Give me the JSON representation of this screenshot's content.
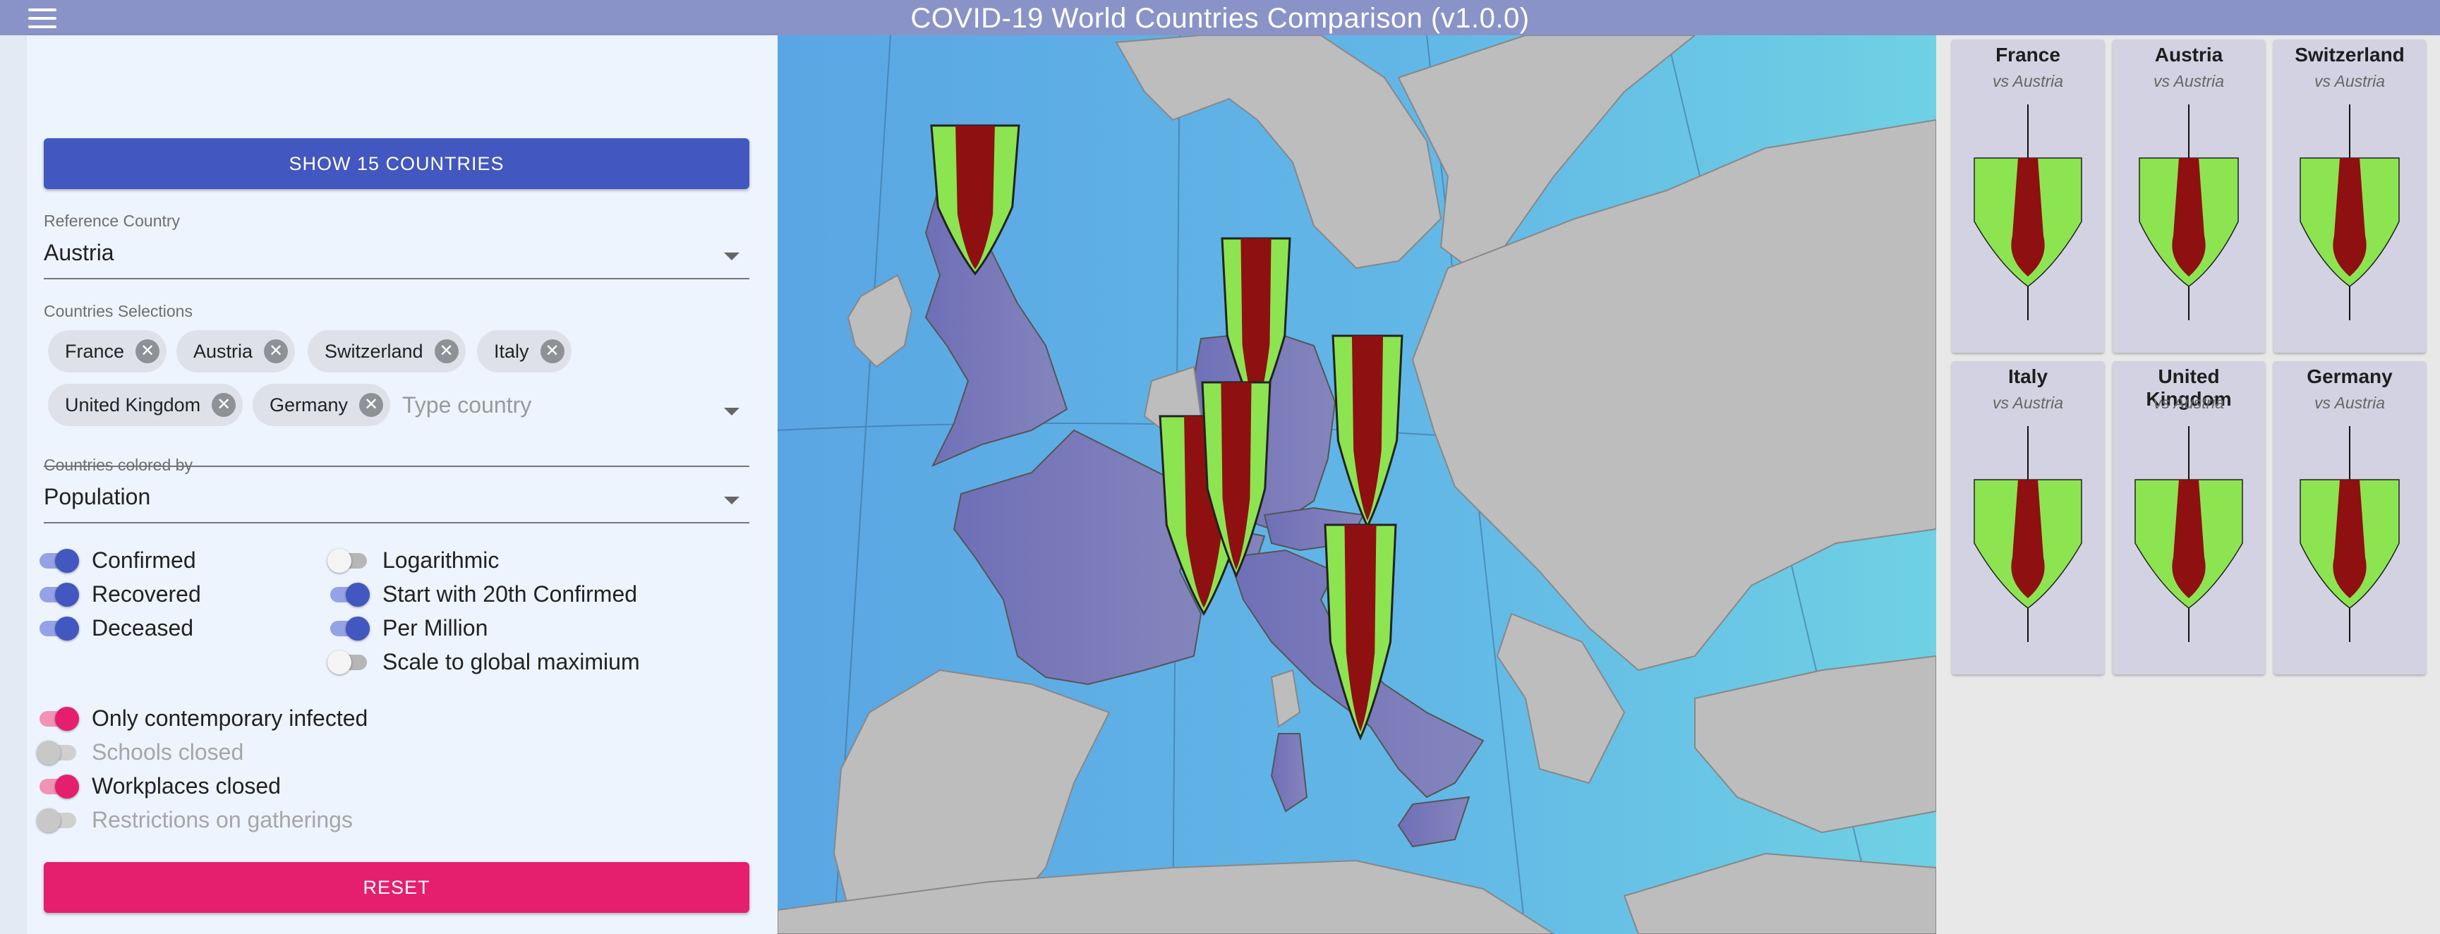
{
  "app": {
    "title": "COVID-19 World Countries Comparison (v1.0.0)"
  },
  "menu": {
    "icon": "hamburger-menu-icon"
  },
  "panel": {
    "show_button": "SHOW 15 COUNTRIES",
    "reference": {
      "label": "Reference Country",
      "value": "Austria"
    },
    "selections": {
      "label": "Countries Selections",
      "chips": [
        "France",
        "Austria",
        "Switzerland",
        "Italy",
        "United Kingdom",
        "Germany"
      ],
      "placeholder": "Type country"
    },
    "colored_by": {
      "label": "Countries colored by",
      "value": "Population"
    },
    "toggles_left": [
      {
        "label": "Confirmed",
        "on": true
      },
      {
        "label": "Recovered",
        "on": true
      },
      {
        "label": "Deceased",
        "on": true
      }
    ],
    "toggles_right": [
      {
        "label": "Logarithmic",
        "on": false
      },
      {
        "label": "Start with 20th Confirmed",
        "on": true
      },
      {
        "label": "Per Million",
        "on": true
      },
      {
        "label": "Scale to global maximium",
        "on": false
      }
    ],
    "toggles_measures": [
      {
        "label": "Only contemporary infected",
        "on": true
      },
      {
        "label": "Schools closed",
        "on": false
      },
      {
        "label": "Workplaces closed",
        "on": true
      },
      {
        "label": "Restrictions on gatherings",
        "on": false
      }
    ],
    "reset_button": "RESET"
  },
  "cards": [
    {
      "country": "France",
      "vs": "vs Austria"
    },
    {
      "country": "Austria",
      "vs": "vs Austria"
    },
    {
      "country": "Switzerland",
      "vs": "vs Austria"
    },
    {
      "country": "Italy",
      "vs": "vs Austria"
    },
    {
      "country": "United Kingdom",
      "vs": "vs Austria"
    },
    {
      "country": "Germany",
      "vs": "vs Austria"
    }
  ],
  "colors": {
    "primary": "#4257bf",
    "accent": "#e51f6e",
    "title_bar": "#8a93c8",
    "confirmed_green": "#8de451",
    "deceased_red": "#8e1010",
    "selected_country": "#7e7cb7",
    "land": "#bdbdbd",
    "sea": "#5ea9e2"
  }
}
